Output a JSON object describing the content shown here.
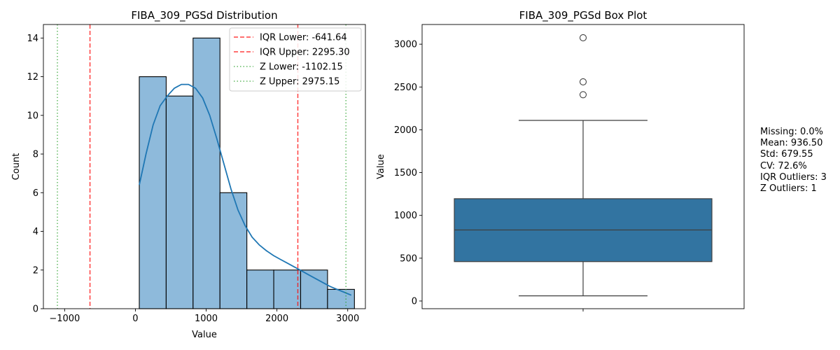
{
  "chart_data": [
    {
      "type": "bar",
      "title": "FIBA_309_PGSd Distribution",
      "xlabel": "Value",
      "ylabel": "Count",
      "xlim": [
        -1300,
        3250
      ],
      "ylim": [
        0,
        14.7
      ],
      "xticks": [
        -1000,
        0,
        1000,
        2000,
        3000
      ],
      "yticks": [
        0,
        2,
        4,
        6,
        8,
        10,
        12,
        14
      ],
      "bins": [
        {
          "x0": 55,
          "x1": 435,
          "count": 12
        },
        {
          "x0": 435,
          "x1": 815,
          "count": 11
        },
        {
          "x0": 815,
          "x1": 1195,
          "count": 14
        },
        {
          "x0": 1195,
          "x1": 1575,
          "count": 6
        },
        {
          "x0": 1575,
          "x1": 1955,
          "count": 2
        },
        {
          "x0": 1955,
          "x1": 2335,
          "count": 2
        },
        {
          "x0": 2335,
          "x1": 2715,
          "count": 2
        },
        {
          "x0": 2715,
          "x1": 3095,
          "count": 1
        }
      ],
      "kde": {
        "x": [
          55,
          150,
          250,
          350,
          450,
          550,
          650,
          750,
          850,
          950,
          1050,
          1150,
          1250,
          1350,
          1450,
          1550,
          1650,
          1750,
          1850,
          1950,
          2050,
          2150,
          2250,
          2350,
          2450,
          2550,
          2650,
          2750,
          2850,
          2950,
          3050
        ],
        "y": [
          6.4,
          8.0,
          9.5,
          10.5,
          11.0,
          11.4,
          11.6,
          11.6,
          11.4,
          10.9,
          10.0,
          8.8,
          7.5,
          6.2,
          5.1,
          4.3,
          3.7,
          3.3,
          3.0,
          2.75,
          2.55,
          2.35,
          2.15,
          1.95,
          1.75,
          1.55,
          1.35,
          1.15,
          1.0,
          0.85,
          0.7
        ]
      },
      "reference_lines": [
        {
          "label": "IQR Lower: -641.64",
          "value": -641.64,
          "style": "dashed",
          "color": "#ff0000"
        },
        {
          "label": "IQR Upper: 2295.30",
          "value": 2295.3,
          "style": "dashed",
          "color": "#ff0000"
        },
        {
          "label": "Z Lower: -1102.15",
          "value": -1102.15,
          "style": "dotted",
          "color": "#2ca02c"
        },
        {
          "label": "Z Upper: 2975.15",
          "value": 2975.15,
          "style": "dotted",
          "color": "#2ca02c"
        }
      ],
      "legend_position": "upper right",
      "bar_color": "#8ebadb",
      "kde_color": "#1f77b4"
    },
    {
      "type": "box",
      "title": "FIBA_309_PGSd Box Plot",
      "xlabel": "",
      "ylabel": "Value",
      "ylim": [
        -90,
        3230
      ],
      "yticks": [
        0,
        500,
        1000,
        1500,
        2000,
        2500,
        3000
      ],
      "whisker_low": 60,
      "q1": 460,
      "median": 830,
      "q3": 1195,
      "whisker_high": 2110,
      "outliers": [
        2410,
        2560,
        3075
      ],
      "box_color": "#3274a1"
    }
  ],
  "stats": {
    "missing": "Missing: 0.0%",
    "mean": "Mean: 936.50",
    "std": "Std: 679.55",
    "cv": "CV: 72.6%",
    "iqr_outliers": "IQR Outliers: 3",
    "z_outliers": "Z Outliers: 1"
  }
}
